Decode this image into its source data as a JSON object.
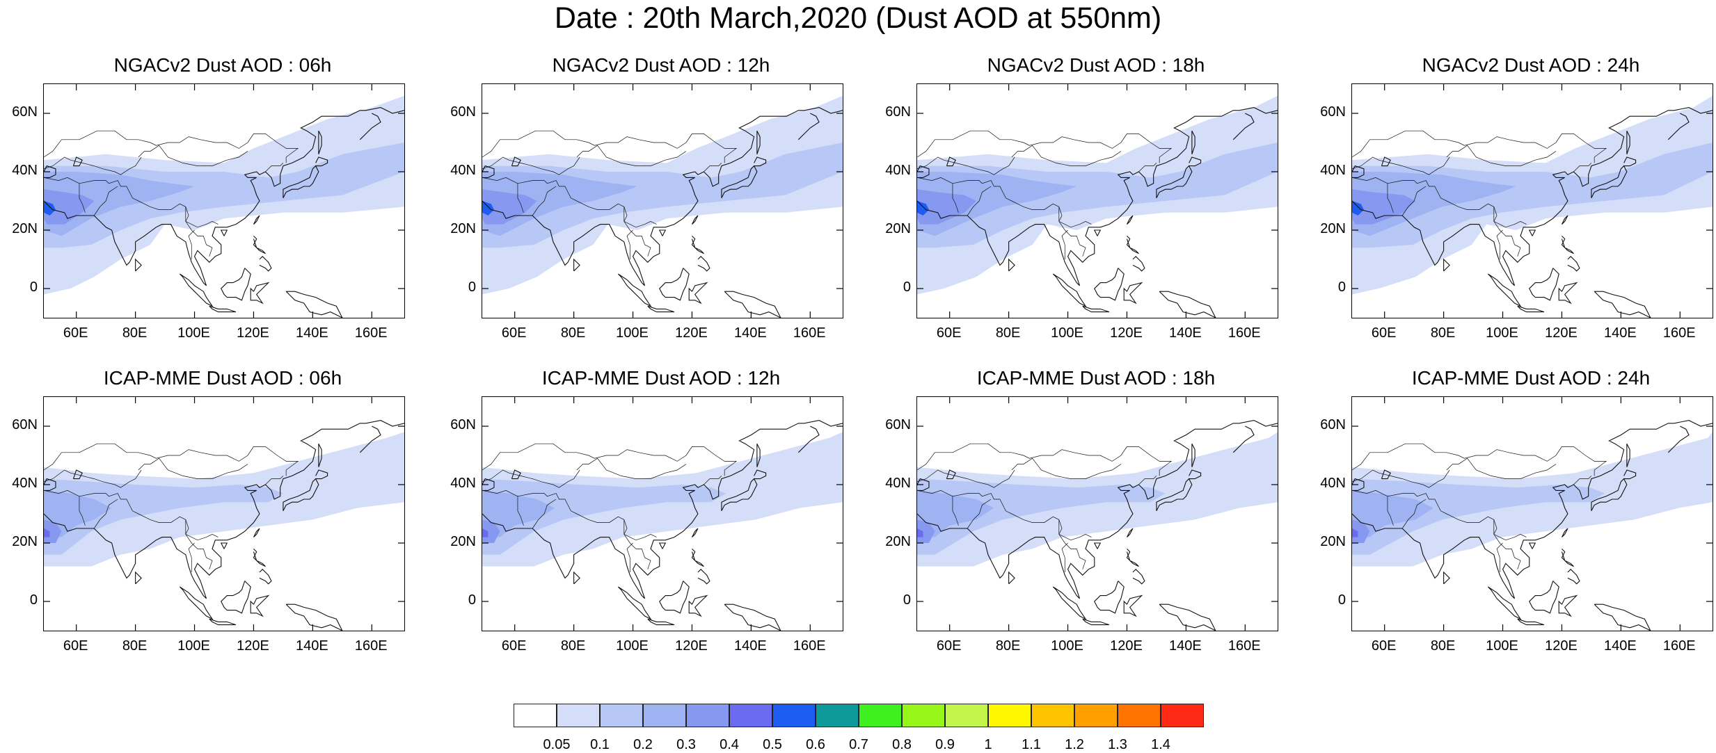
{
  "title": "Date : 20th March,2020 (Dust AOD at 550nm)",
  "panels": [
    {
      "title": "NGACv2 Dust AOD : 06h"
    },
    {
      "title": "NGACv2 Dust AOD : 12h"
    },
    {
      "title": "NGACv2 Dust AOD : 18h"
    },
    {
      "title": "NGACv2 Dust AOD : 24h"
    },
    {
      "title": "ICAP-MME Dust AOD : 06h"
    },
    {
      "title": "ICAP-MME Dust AOD : 12h"
    },
    {
      "title": "ICAP-MME Dust AOD : 18h"
    },
    {
      "title": "ICAP-MME Dust AOD : 24h"
    }
  ],
  "axes": {
    "lat_labels": [
      "60N",
      "40N",
      "20N",
      "0"
    ],
    "lon_labels": [
      "60E",
      "80E",
      "100E",
      "120E",
      "140E",
      "160E"
    ],
    "lat_range": [
      -10,
      70
    ],
    "lon_range": [
      49,
      171
    ]
  },
  "colorbar": {
    "levels": [
      "0.05",
      "0.1",
      "0.2",
      "0.3",
      "0.4",
      "0.5",
      "0.6",
      "0.7",
      "0.8",
      "0.9",
      "1",
      "1.1",
      "1.2",
      "1.3",
      "1.4"
    ],
    "colors": [
      "#ffffff",
      "#d4def8",
      "#b8c8f6",
      "#9fb3f2",
      "#8698f0",
      "#6b6bf0",
      "#1e5df2",
      "#0f9a9a",
      "#3ef020",
      "#97f51a",
      "#c4f54a",
      "#fff700",
      "#ffc400",
      "#ff9f00",
      "#ff7400",
      "#ff2a15"
    ]
  }
}
